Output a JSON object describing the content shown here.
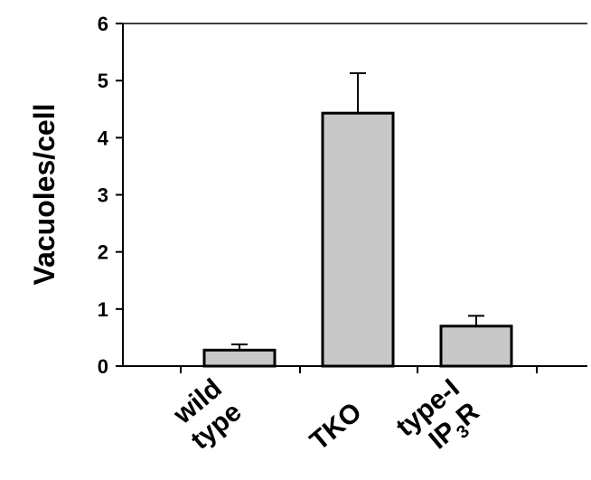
{
  "chart_data": {
    "type": "bar",
    "categories": [
      {
        "lines": [
          "wild",
          "type"
        ]
      },
      {
        "lines": [
          "TKO"
        ]
      },
      {
        "lines": [
          "type-I",
          "IP3R"
        ],
        "subscript": "3"
      }
    ],
    "values": [
      0.28,
      4.43,
      0.7
    ],
    "errors": [
      0.1,
      0.7,
      0.18
    ],
    "ylabel": "Vacuoles/cell",
    "ylim": [
      0,
      6
    ],
    "yticks": [
      "0",
      "1",
      "2",
      "3",
      "4",
      "5",
      "6"
    ],
    "grid": false,
    "bar_color": "#c8c8c8",
    "edge_color": "#000000"
  }
}
